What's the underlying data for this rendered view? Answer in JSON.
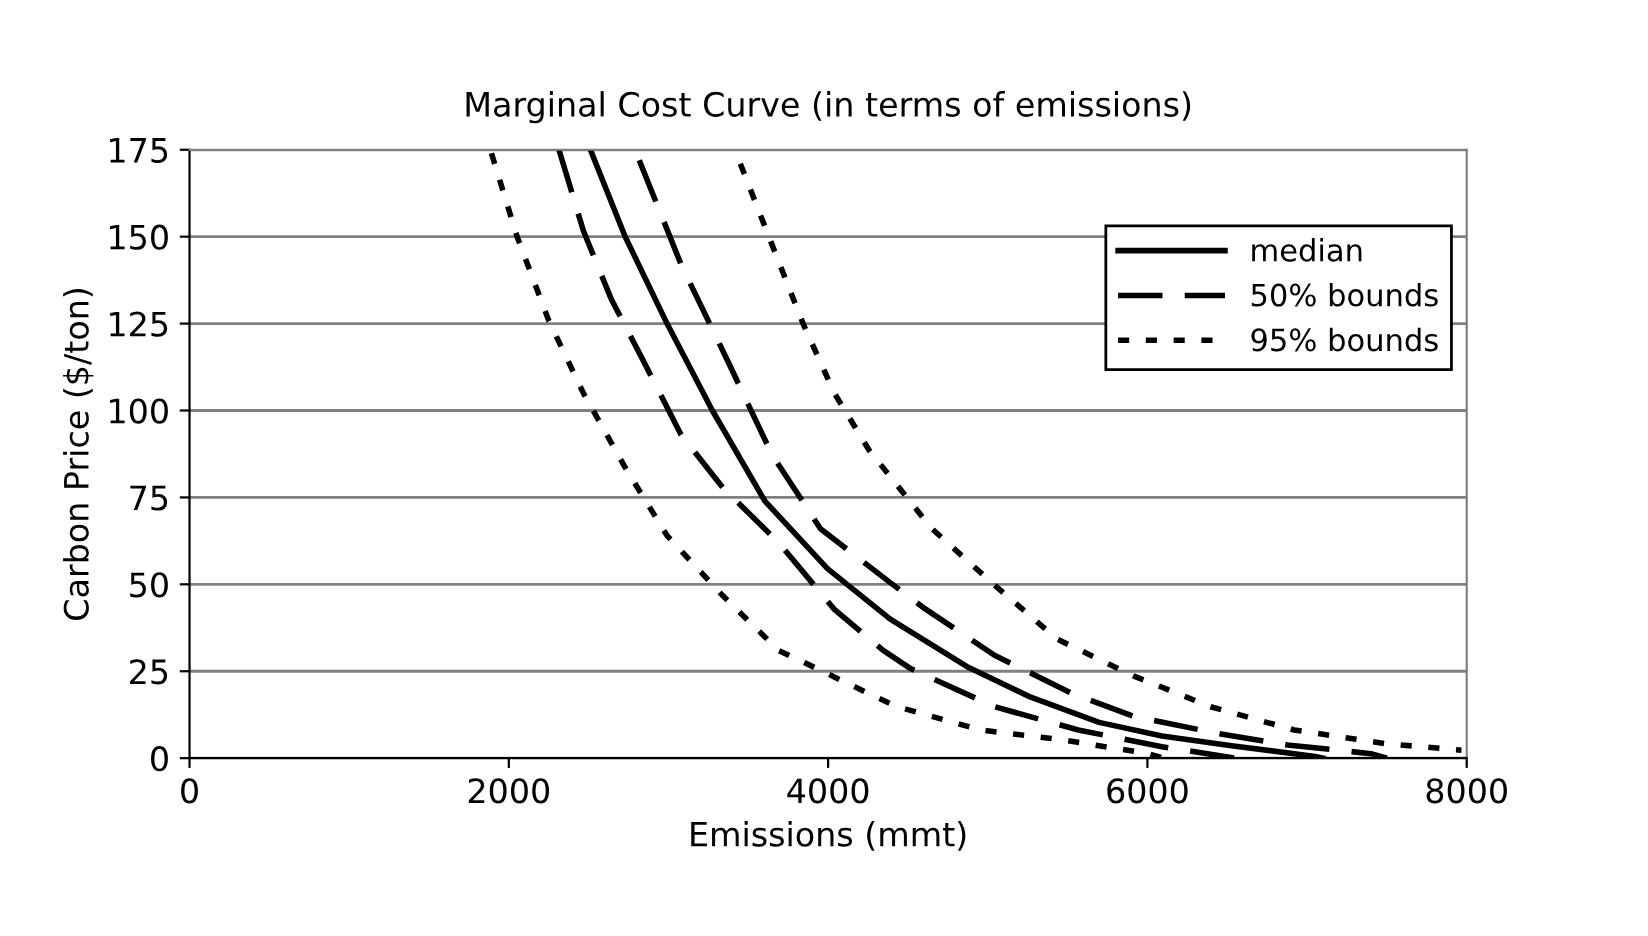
{
  "chart_data": {
    "type": "line",
    "title": "Marginal Cost Curve (in terms of emissions)",
    "xlabel": "Emissions (mmt)",
    "ylabel": "Carbon Price ($/ton)",
    "xlim": [
      0,
      8000
    ],
    "xticks": [
      0,
      2000,
      4000,
      6000,
      8000
    ],
    "ylim": [
      0,
      175
    ],
    "yticks": [
      0,
      25,
      50,
      75,
      100,
      125,
      150,
      175
    ],
    "grid": "y",
    "legend": "top right",
    "marker": "none",
    "series": [
      {
        "name": "median",
        "color": "#000000",
        "line_style": "solid",
        "x": [
          2511,
          2729,
          2991,
          3275,
          3603,
          3996,
          4389,
          4868,
          5261,
          5697,
          6091,
          6527,
          7051,
          7100
        ],
        "values": [
          175,
          150,
          125,
          100,
          74,
          54.5,
          40,
          26.4,
          17.7,
          10.3,
          6.4,
          3.6,
          0.5,
          0
        ]
      },
      {
        "name": "50% bounds",
        "color": "#000000",
        "line_style": "dashed",
        "x": [
          2817,
          3079,
          3384,
          3646,
          3952,
          4389,
          4606,
          5042,
          5523,
          5916,
          6440,
          6877,
          7400,
          7500
        ],
        "values": [
          172,
          142,
          113,
          87.5,
          66,
          50.5,
          43,
          29.6,
          18.7,
          12,
          7.1,
          3.8,
          1.3,
          0
        ]
      },
      {
        "color": "#000000",
        "line_style": "dashed",
        "x": [
          2314,
          2467,
          2642,
          2838,
          3079,
          3341,
          3690,
          4039,
          4345,
          4519,
          5042,
          5567,
          6091,
          6550
        ],
        "values": [
          175,
          151.7,
          132,
          114.7,
          93,
          77.8,
          62,
          42.8,
          31,
          25.7,
          14.8,
          8.1,
          3.3,
          0
        ]
      },
      {
        "name": "95% bounds",
        "color": "#000000",
        "line_style": "dotted",
        "x": [
          3450,
          3646,
          3843,
          4039,
          4258,
          4650,
          5042,
          5436,
          5916,
          6396,
          6920,
          7487,
          7967
        ],
        "values": [
          171,
          148,
          125,
          105,
          88.5,
          66,
          49.8,
          34.2,
          23.6,
          14.8,
          8.1,
          4.2,
          2.3
        ]
      },
      {
        "color": "#000000",
        "line_style": "dotted",
        "x": [
          1891,
          2052,
          2249,
          2467,
          2729,
          2991,
          3341,
          3690,
          3996,
          4258,
          4432,
          4956,
          5480,
          6004,
          6100
        ],
        "values": [
          174,
          150,
          126,
          105,
          83.6,
          64,
          46.7,
          31,
          24.3,
          18.5,
          14.8,
          8.1,
          5.2,
          1.3,
          0
        ]
      }
    ]
  }
}
